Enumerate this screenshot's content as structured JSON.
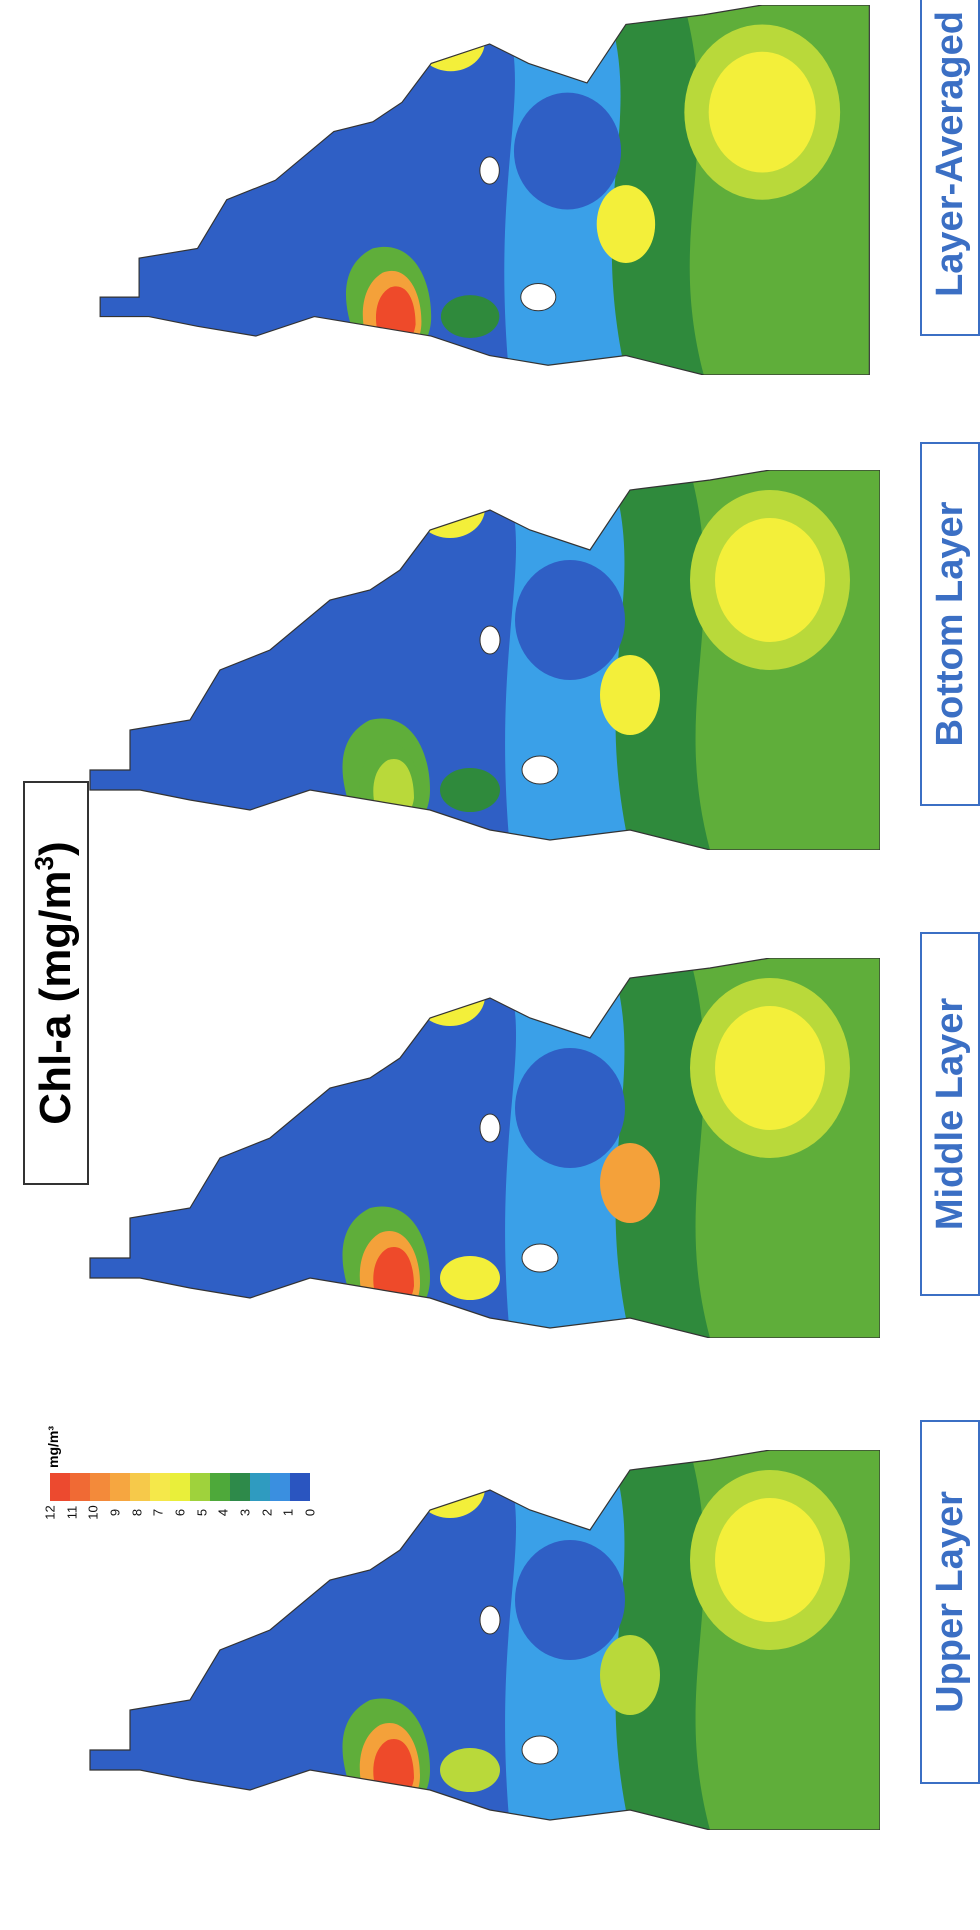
{
  "title": {
    "main": "Chl-a  (mg/m",
    "sup": "3",
    "close": ")"
  },
  "panels": [
    {
      "label": "Upper Layer"
    },
    {
      "label": "Middle Layer"
    },
    {
      "label": "Bottom Layer"
    },
    {
      "label": "Layer-Averaged"
    }
  ],
  "legend": {
    "unit": "mg/m³",
    "ticks": [
      "12",
      "11",
      "10",
      "9",
      "8",
      "7",
      "6",
      "5",
      "4",
      "3",
      "2",
      "1",
      "0"
    ],
    "colors": [
      "#2a55c0",
      "#3a8fe0",
      "#2f9bc0",
      "#2e8a4a",
      "#4ea93a",
      "#9fd23c",
      "#e9ef3a",
      "#f5e84a",
      "#f6c94a",
      "#f6a640",
      "#f38a3a",
      "#f06a34",
      "#ec4a2f"
    ]
  },
  "palette": {
    "deep_blue": "#2f5fc5",
    "light_blue": "#3aa0e8",
    "teal": "#1f8c8c",
    "dark_green": "#2f8a3c",
    "mid_green": "#5fae3a",
    "yellow_green": "#b9d93a",
    "yellow": "#f3ef3a",
    "orange": "#f4a13a",
    "red": "#ee4a2a",
    "land": "#ffffff",
    "coast": "#333333"
  }
}
